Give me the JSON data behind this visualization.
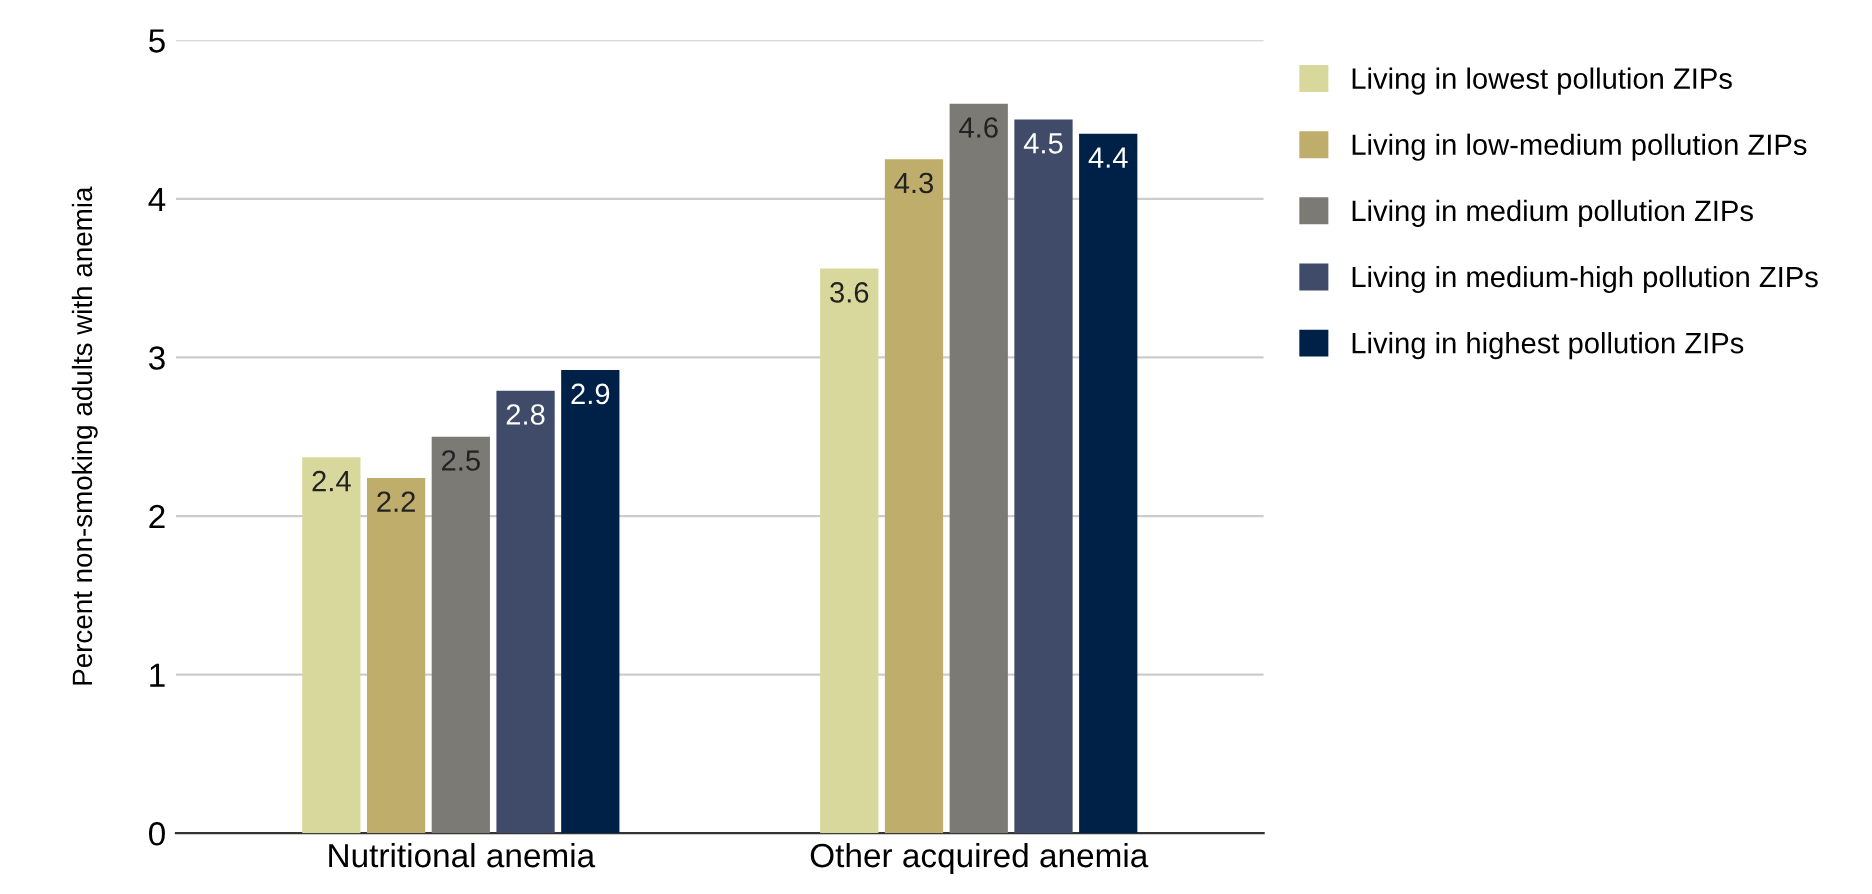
{
  "chart_data": {
    "type": "bar",
    "ylabel": "Percent non-smoking adults with anemia",
    "categories": [
      "Nutritional anemia",
      "Other acquired anemia"
    ],
    "series": [
      {
        "name": "Living in lowest pollution ZIPs",
        "color": "#d9d89c",
        "values": [
          2.37,
          3.56
        ],
        "value_labels": [
          "2.4",
          "3.6"
        ]
      },
      {
        "name": "Living in low-medium pollution ZIPs",
        "color": "#bfad6c",
        "values": [
          2.24,
          4.25
        ],
        "value_labels": [
          "2.2",
          "4.3"
        ]
      },
      {
        "name": "Living in medium pollution ZIPs",
        "color": "#7b7a74",
        "values": [
          2.5,
          4.6
        ],
        "value_labels": [
          "2.5",
          "4.6"
        ]
      },
      {
        "name": "Living in medium-high pollution ZIPs",
        "color": "#404b6a",
        "values": [
          2.79,
          4.5
        ],
        "value_labels": [
          "2.8",
          "4.5"
        ]
      },
      {
        "name": "Living in highest pollution ZIPs",
        "color": "#002147",
        "values": [
          2.92,
          4.41
        ],
        "value_labels": [
          "2.9",
          "4.4"
        ]
      }
    ],
    "ylim": [
      0,
      5
    ],
    "yticks": [
      0,
      1,
      2,
      3,
      4,
      5
    ],
    "grid": "y",
    "legend": "right"
  }
}
